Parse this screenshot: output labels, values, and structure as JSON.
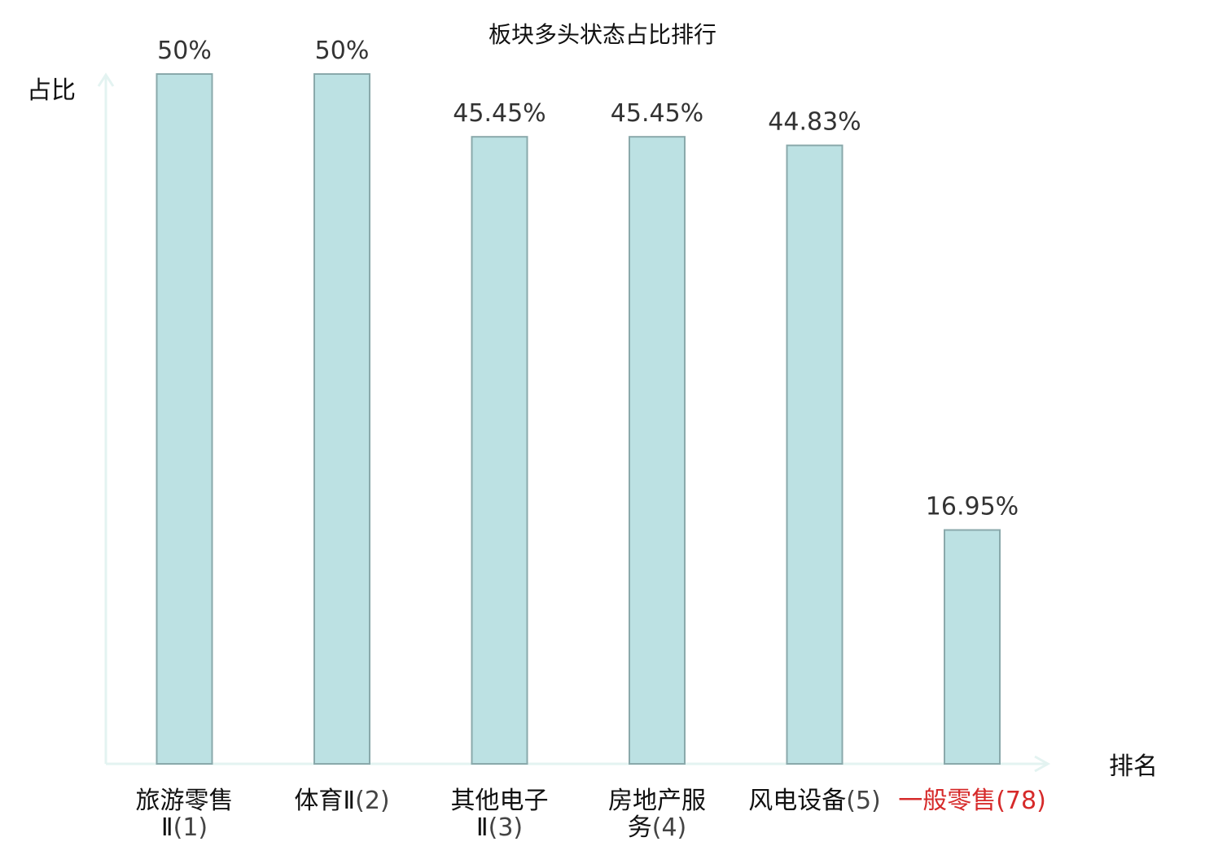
{
  "chart_data": {
    "type": "bar",
    "title": "板块多头状态占比排行",
    "ylabel": "占比",
    "xlabel": "排名",
    "categories": [
      {
        "name_lines": [
          "旅游零售",
          "Ⅱ"
        ],
        "rank": "(1)",
        "highlight": false
      },
      {
        "name_lines": [
          "体育Ⅱ"
        ],
        "rank": "(2)",
        "highlight": false
      },
      {
        "name_lines": [
          "其他电子",
          "Ⅱ"
        ],
        "rank": "(3)",
        "highlight": false
      },
      {
        "name_lines": [
          "房地产服",
          "务"
        ],
        "rank": "(4)",
        "highlight": false
      },
      {
        "name_lines": [
          "风电设备"
        ],
        "rank": "(5)",
        "highlight": false
      },
      {
        "name_lines": [
          "一般零售"
        ],
        "rank": "(78)",
        "highlight": true
      }
    ],
    "values": [
      50,
      50,
      45.45,
      45.45,
      44.83,
      16.95
    ],
    "value_labels": [
      "50%",
      "50%",
      "45.45%",
      "45.45%",
      "44.83%",
      "16.95%"
    ],
    "ylim": [
      0,
      50
    ],
    "grid": false,
    "colors": {
      "bar_fill": "#bce1e3",
      "bar_stroke": "#8aa9ab",
      "axis": "#e3f3f1",
      "highlight": "#d62a2a",
      "name_text": "#111111",
      "rank_text": "#444444"
    }
  }
}
